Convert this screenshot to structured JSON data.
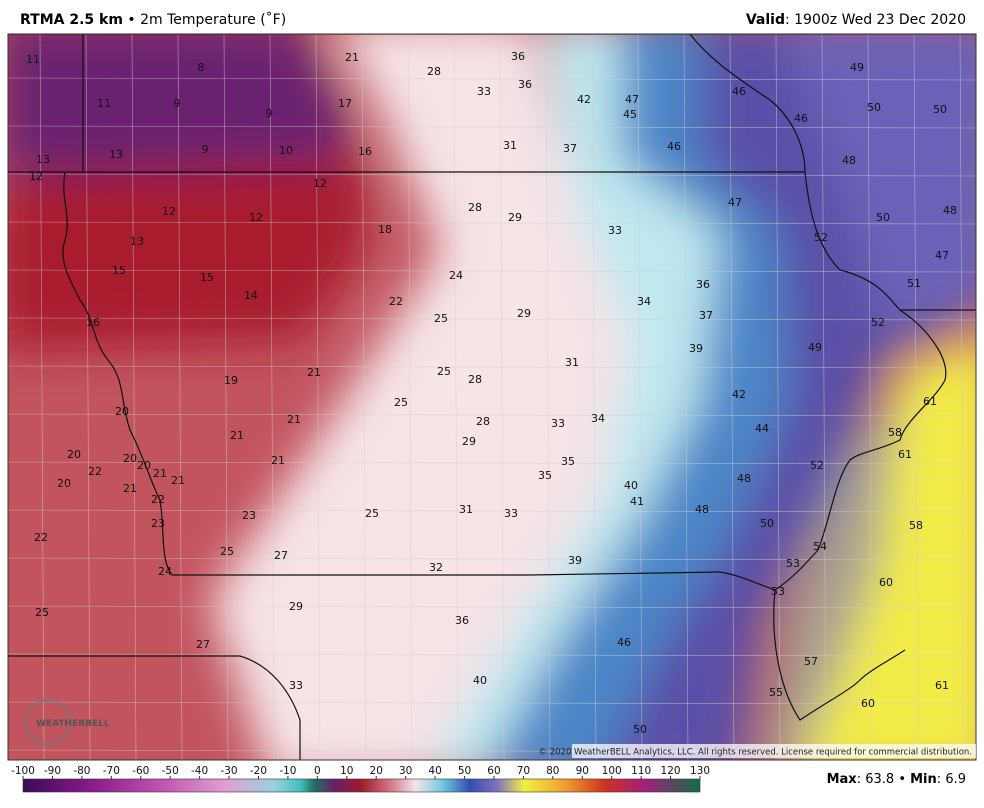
{
  "header": {
    "title": "RTMA 2.5 km",
    "bullet": "•",
    "subtitle": "2m Temperature (˚F)",
    "valid_label": "Valid",
    "valid_time": ": 1900z Wed 23 Dec 2020"
  },
  "map": {
    "labels": [
      11,
      8,
      21,
      28,
      36,
      33,
      36,
      42,
      47,
      45,
      49,
      46,
      50,
      50,
      11,
      9,
      9,
      17,
      46,
      13,
      13,
      9,
      10,
      16,
      31,
      37,
      46,
      48,
      12,
      12,
      47,
      28,
      29,
      12,
      12,
      50,
      48,
      13,
      18,
      33,
      52,
      47,
      15,
      15,
      24,
      36,
      51,
      14,
      22,
      34,
      25,
      29,
      37,
      16,
      52,
      39,
      49,
      31,
      21,
      25,
      28,
      19,
      42,
      61,
      25,
      20,
      21,
      28,
      33,
      34,
      44,
      58,
      21,
      29,
      20,
      61,
      20,
      21,
      35,
      52,
      22,
      20,
      21,
      35,
      48,
      21,
      20,
      21,
      40,
      22,
      41,
      48,
      31,
      33,
      25,
      23,
      50,
      58,
      23,
      22,
      54,
      25,
      27,
      53,
      39,
      32,
      24,
      60,
      53,
      29,
      25,
      36,
      46,
      27,
      57,
      33,
      61,
      40,
      55,
      60,
      50
    ],
    "logo": "WEATHERBELL",
    "copyright": "© 2020 WeatherBELL Analytics, LLC. All rights reserved. License required for commercial distribution."
  },
  "colorbar": {
    "ticks": [
      -100,
      -90,
      -80,
      -70,
      -60,
      -50,
      -40,
      -30,
      -20,
      -10,
      0,
      10,
      20,
      30,
      40,
      50,
      60,
      70,
      80,
      90,
      100,
      110,
      120,
      130
    ]
  },
  "footer": {
    "max_label": "Max",
    "colon": ":",
    "max": 63.8,
    "bullet": "•",
    "min_label": "Min",
    "min": 6.9
  }
}
